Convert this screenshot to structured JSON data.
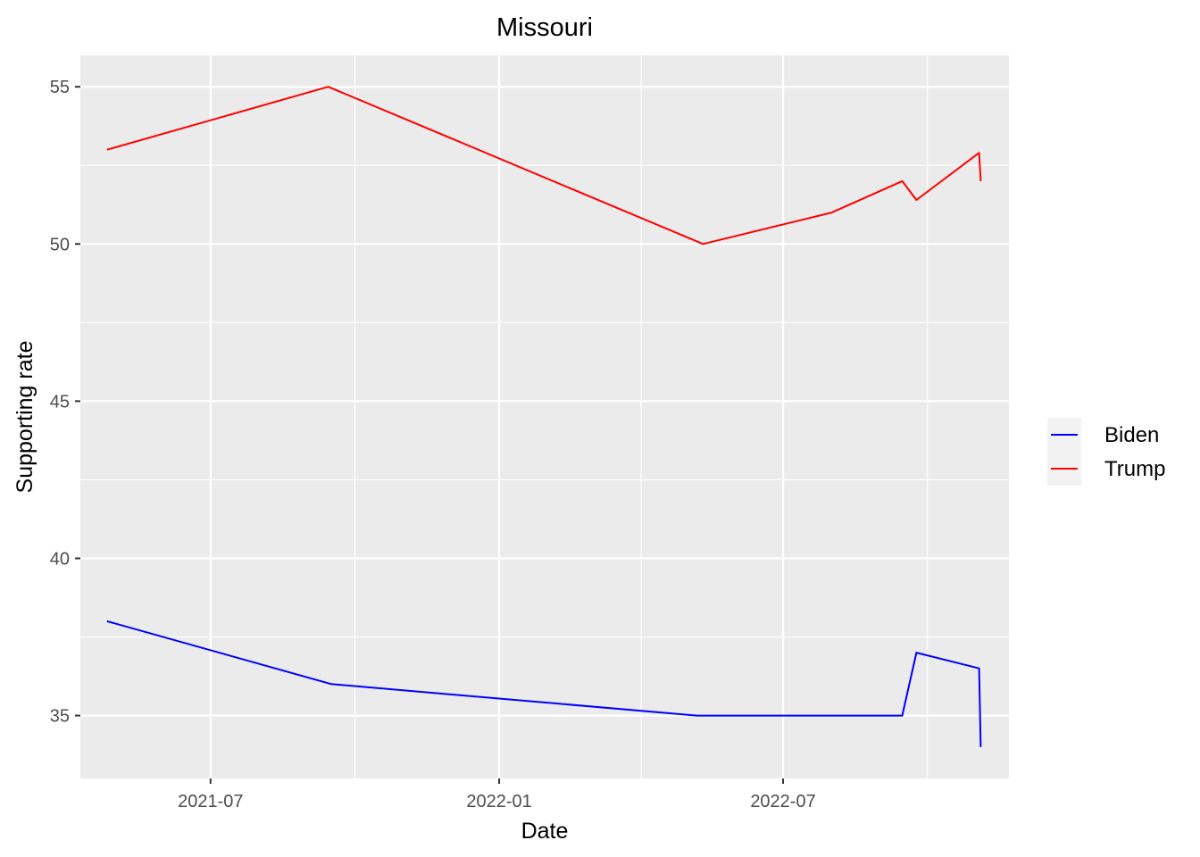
{
  "chart_data": {
    "type": "line",
    "title": "Missouri",
    "xlabel": "Date",
    "ylabel": "Supporting rate",
    "x_axis_type": "date",
    "xlim": [
      "2021-04-09",
      "2022-11-22"
    ],
    "ylim": [
      33.0,
      56.0
    ],
    "x_ticks": [
      "2021-07-01",
      "2022-01-01",
      "2022-07-01"
    ],
    "x_tick_labels": [
      "2021-07",
      "2022-01",
      "2022-07"
    ],
    "y_ticks": [
      35,
      40,
      45,
      50,
      55
    ],
    "y_tick_labels": [
      "35",
      "40",
      "45",
      "50",
      "55"
    ],
    "grid": true,
    "legend_position": "right",
    "series": [
      {
        "name": "Biden",
        "color": "#0000ff",
        "points": [
          {
            "x": "2021-04-26",
            "y": 38.0
          },
          {
            "x": "2021-09-16",
            "y": 36.0
          },
          {
            "x": "2022-05-07",
            "y": 35.0
          },
          {
            "x": "2022-09-15",
            "y": 35.0
          },
          {
            "x": "2022-09-24",
            "y": 37.0
          },
          {
            "x": "2022-11-03",
            "y": 36.5
          },
          {
            "x": "2022-11-04",
            "y": 34.0
          }
        ]
      },
      {
        "name": "Trump",
        "color": "#ff0000",
        "points": [
          {
            "x": "2021-04-26",
            "y": 53.0
          },
          {
            "x": "2021-09-14",
            "y": 55.0
          },
          {
            "x": "2022-05-11",
            "y": 50.0
          },
          {
            "x": "2022-08-01",
            "y": 51.0
          },
          {
            "x": "2022-09-15",
            "y": 52.0
          },
          {
            "x": "2022-09-24",
            "y": 51.4
          },
          {
            "x": "2022-11-03",
            "y": 52.9
          },
          {
            "x": "2022-11-04",
            "y": 52.0
          }
        ]
      }
    ]
  }
}
